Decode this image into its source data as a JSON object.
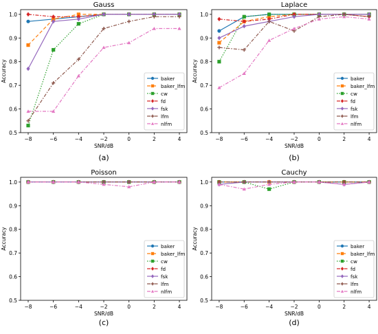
{
  "chart_data": [
    {
      "type": "line",
      "title": "Gauss",
      "xlabel": "SNR/dB",
      "ylabel": "Accuracy",
      "caption": "(a)",
      "x": [
        -8,
        -6,
        -4,
        -2,
        0,
        2,
        4
      ],
      "xlim": [
        -8.6,
        4.6
      ],
      "ylim": [
        0.5,
        1.02
      ],
      "xticks": [
        -8,
        -6,
        -4,
        -2,
        0,
        2,
        4
      ],
      "yticks": [
        0.5,
        0.6,
        0.7,
        0.8,
        0.9,
        1.0
      ],
      "legend": "lower-right",
      "series": [
        {
          "name": "baker",
          "color": "#1f77b4",
          "dash": "solid",
          "marker": "circle",
          "values": [
            0.97,
            0.98,
            0.99,
            1.0,
            1.0,
            1.0,
            1.0
          ]
        },
        {
          "name": "baker_lfm",
          "color": "#ff7f0e",
          "dash": "dashed",
          "marker": "square",
          "values": [
            0.87,
            0.98,
            1.0,
            1.0,
            1.0,
            1.0,
            1.0
          ]
        },
        {
          "name": "cw",
          "color": "#2ca02c",
          "dash": "dotted",
          "marker": "square",
          "values": [
            0.53,
            0.85,
            0.96,
            1.0,
            1.0,
            1.0,
            1.0
          ]
        },
        {
          "name": "fd",
          "color": "#d62728",
          "dash": "dashdot",
          "marker": "diamond",
          "values": [
            1.0,
            0.99,
            0.99,
            1.0,
            1.0,
            1.0,
            1.0
          ]
        },
        {
          "name": "fsk",
          "color": "#9467bd",
          "dash": "solid",
          "marker": "diamond",
          "values": [
            0.77,
            0.97,
            0.98,
            1.0,
            1.0,
            1.0,
            1.0
          ]
        },
        {
          "name": "lfm",
          "color": "#8c564b",
          "dash": "dashdot",
          "marker": "plus",
          "values": [
            0.55,
            0.71,
            0.81,
            0.94,
            0.97,
            0.99,
            0.99
          ]
        },
        {
          "name": "nlfm",
          "color": "#e377c2",
          "dash": "dashdot",
          "marker": "triangle",
          "values": [
            0.59,
            0.59,
            0.74,
            0.86,
            0.88,
            0.94,
            0.94
          ]
        }
      ]
    },
    {
      "type": "line",
      "title": "Laplace",
      "xlabel": "SNR/dB",
      "ylabel": "Accuracy",
      "caption": "(b)",
      "x": [
        -8,
        -6,
        -4,
        -2,
        0,
        2,
        4
      ],
      "xlim": [
        -8.6,
        4.6
      ],
      "ylim": [
        0.5,
        1.02
      ],
      "xticks": [
        -8,
        -6,
        -4,
        -2,
        0,
        2,
        4
      ],
      "yticks": [
        0.5,
        0.6,
        0.7,
        0.8,
        0.9,
        1.0
      ],
      "legend": "lower-right",
      "series": [
        {
          "name": "baker",
          "color": "#1f77b4",
          "dash": "solid",
          "marker": "circle",
          "values": [
            0.93,
            0.99,
            1.0,
            1.0,
            1.0,
            1.0,
            1.0
          ]
        },
        {
          "name": "baker_lfm",
          "color": "#ff7f0e",
          "dash": "dashed",
          "marker": "square",
          "values": [
            0.88,
            0.97,
            0.99,
            1.0,
            1.0,
            1.0,
            1.0
          ]
        },
        {
          "name": "cw",
          "color": "#2ca02c",
          "dash": "dotted",
          "marker": "square",
          "values": [
            0.8,
            0.99,
            1.0,
            1.0,
            1.0,
            1.0,
            1.0
          ]
        },
        {
          "name": "fd",
          "color": "#d62728",
          "dash": "dashdot",
          "marker": "diamond",
          "values": [
            0.98,
            0.97,
            0.98,
            1.0,
            1.0,
            1.0,
            0.99
          ]
        },
        {
          "name": "fsk",
          "color": "#9467bd",
          "dash": "solid",
          "marker": "diamond",
          "values": [
            0.9,
            0.95,
            0.97,
            0.99,
            1.0,
            1.0,
            1.0
          ]
        },
        {
          "name": "lfm",
          "color": "#8c564b",
          "dash": "dashdot",
          "marker": "plus",
          "values": [
            0.86,
            0.85,
            0.97,
            0.93,
            0.99,
            1.0,
            0.99
          ]
        },
        {
          "name": "nlfm",
          "color": "#e377c2",
          "dash": "dashdot",
          "marker": "triangle",
          "values": [
            0.69,
            0.75,
            0.89,
            0.94,
            0.98,
            0.99,
            0.98
          ]
        }
      ]
    },
    {
      "type": "line",
      "title": "Poisson",
      "xlabel": "SNR/dB",
      "ylabel": "Accuracy",
      "caption": "(c)",
      "x": [
        -8,
        -6,
        -4,
        -2,
        0,
        2,
        4
      ],
      "xlim": [
        -8.6,
        4.6
      ],
      "ylim": [
        0.5,
        1.02
      ],
      "xticks": [
        -8,
        -6,
        -4,
        -2,
        0,
        2,
        4
      ],
      "yticks": [
        0.5,
        0.6,
        0.7,
        0.8,
        0.9,
        1.0
      ],
      "legend": "lower-right",
      "series": [
        {
          "name": "baker",
          "color": "#1f77b4",
          "dash": "solid",
          "marker": "circle",
          "values": [
            1.0,
            1.0,
            1.0,
            1.0,
            1.0,
            1.0,
            1.0
          ]
        },
        {
          "name": "baker_lfm",
          "color": "#ff7f0e",
          "dash": "dashed",
          "marker": "square",
          "values": [
            1.0,
            1.0,
            1.0,
            1.0,
            1.0,
            1.0,
            1.0
          ]
        },
        {
          "name": "cw",
          "color": "#2ca02c",
          "dash": "dotted",
          "marker": "square",
          "values": [
            1.0,
            1.0,
            1.0,
            1.0,
            1.0,
            1.0,
            1.0
          ]
        },
        {
          "name": "fd",
          "color": "#d62728",
          "dash": "dashdot",
          "marker": "diamond",
          "values": [
            1.0,
            1.0,
            1.0,
            1.0,
            1.0,
            1.0,
            1.0
          ]
        },
        {
          "name": "fsk",
          "color": "#9467bd",
          "dash": "solid",
          "marker": "diamond",
          "values": [
            1.0,
            1.0,
            1.0,
            1.0,
            1.0,
            1.0,
            1.0
          ]
        },
        {
          "name": "lfm",
          "color": "#8c564b",
          "dash": "dashdot",
          "marker": "plus",
          "values": [
            1.0,
            1.0,
            1.0,
            1.0,
            1.0,
            1.0,
            1.0
          ]
        },
        {
          "name": "nlfm",
          "color": "#e377c2",
          "dash": "dashdot",
          "marker": "triangle",
          "values": [
            1.0,
            1.0,
            1.0,
            0.99,
            0.98,
            1.0,
            1.0
          ]
        }
      ]
    },
    {
      "type": "line",
      "title": "Cauchy",
      "xlabel": "SNR/dB",
      "ylabel": "Accuracy",
      "caption": "(d)",
      "x": [
        -8,
        -6,
        -4,
        -2,
        0,
        2,
        4
      ],
      "xlim": [
        -8.6,
        4.6
      ],
      "ylim": [
        0.5,
        1.02
      ],
      "xticks": [
        -8,
        -6,
        -4,
        -2,
        0,
        2,
        4
      ],
      "yticks": [
        0.5,
        0.6,
        0.7,
        0.8,
        0.9,
        1.0
      ],
      "legend": "lower-right",
      "series": [
        {
          "name": "baker",
          "color": "#1f77b4",
          "dash": "solid",
          "marker": "circle",
          "values": [
            1.0,
            1.0,
            1.0,
            1.0,
            1.0,
            1.0,
            1.0
          ]
        },
        {
          "name": "baker_lfm",
          "color": "#ff7f0e",
          "dash": "dashed",
          "marker": "square",
          "values": [
            1.0,
            1.0,
            1.0,
            1.0,
            1.0,
            1.0,
            1.0
          ]
        },
        {
          "name": "cw",
          "color": "#2ca02c",
          "dash": "dotted",
          "marker": "square",
          "values": [
            1.0,
            1.0,
            0.97,
            1.0,
            1.0,
            1.0,
            1.0
          ]
        },
        {
          "name": "fd",
          "color": "#d62728",
          "dash": "dashdot",
          "marker": "diamond",
          "values": [
            1.0,
            1.0,
            1.0,
            1.0,
            1.0,
            1.0,
            1.0
          ]
        },
        {
          "name": "fsk",
          "color": "#9467bd",
          "dash": "solid",
          "marker": "diamond",
          "values": [
            0.99,
            1.0,
            1.0,
            1.0,
            1.0,
            0.99,
            1.0
          ]
        },
        {
          "name": "lfm",
          "color": "#8c564b",
          "dash": "dashdot",
          "marker": "plus",
          "values": [
            1.0,
            1.0,
            1.0,
            1.0,
            1.0,
            1.0,
            1.0
          ]
        },
        {
          "name": "nlfm",
          "color": "#e377c2",
          "dash": "dashdot",
          "marker": "triangle",
          "values": [
            0.99,
            0.97,
            0.99,
            1.0,
            1.0,
            0.99,
            1.0
          ]
        }
      ]
    }
  ]
}
